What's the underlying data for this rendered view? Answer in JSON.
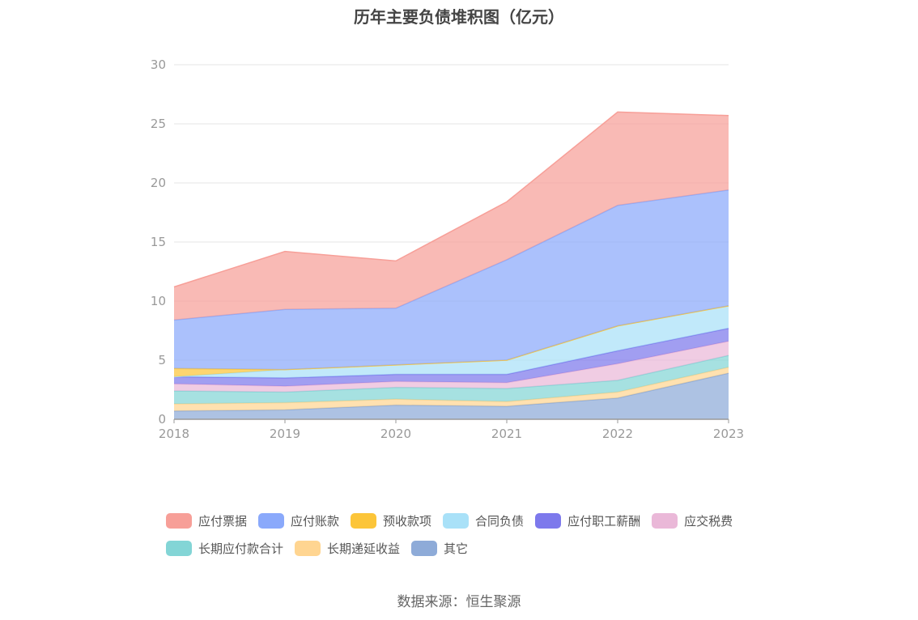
{
  "title": "历年主要负债堆积图（亿元）",
  "source": "数据来源：恒生聚源",
  "chart_data": {
    "type": "area",
    "stacked": true,
    "categories": [
      "2018",
      "2019",
      "2020",
      "2021",
      "2022",
      "2023"
    ],
    "ylim": [
      0,
      30
    ],
    "yticks": [
      0,
      5,
      10,
      15,
      20,
      25,
      30
    ],
    "grid": true,
    "legend_position": "bottom",
    "series": [
      {
        "name": "其它",
        "color": "#8eabd8",
        "values": [
          0.7,
          0.8,
          1.2,
          1.1,
          1.8,
          3.9
        ]
      },
      {
        "name": "长期递延收益",
        "color": "#ffd591",
        "values": [
          0.6,
          0.6,
          0.5,
          0.4,
          0.5,
          0.5
        ]
      },
      {
        "name": "长期应付款合计",
        "color": "#83d5d6",
        "values": [
          1.1,
          0.9,
          1.0,
          1.1,
          1.0,
          1.0
        ]
      },
      {
        "name": "应交税费",
        "color": "#eab8d8",
        "values": [
          0.6,
          0.5,
          0.5,
          0.5,
          1.4,
          1.2
        ]
      },
      {
        "name": "应付职工薪酬",
        "color": "#7d79ec",
        "values": [
          0.6,
          0.7,
          0.6,
          0.7,
          1.1,
          1.1
        ]
      },
      {
        "name": "合同负债",
        "color": "#a9e1f8",
        "values": [
          0.0,
          0.7,
          0.8,
          1.2,
          2.1,
          1.9
        ]
      },
      {
        "name": "预收款项",
        "color": "#fcc539",
        "values": [
          0.7,
          0.0,
          0.0,
          0.0,
          0.0,
          0.0
        ]
      },
      {
        "name": "应付账款",
        "color": "#8aa9fb",
        "values": [
          4.1,
          5.1,
          4.8,
          8.5,
          10.2,
          9.8
        ]
      },
      {
        "name": "应付票据",
        "color": "#f79f98",
        "values": [
          2.8,
          4.9,
          4.0,
          4.9,
          7.9,
          6.3
        ]
      }
    ]
  },
  "legend": [
    {
      "name": "应付票据",
      "color": "#f79f98"
    },
    {
      "name": "应付账款",
      "color": "#8aa9fb"
    },
    {
      "name": "预收款项",
      "color": "#fcc539"
    },
    {
      "name": "合同负债",
      "color": "#a9e1f8"
    },
    {
      "name": "应付职工薪酬",
      "color": "#7d79ec"
    },
    {
      "name": "应交税费",
      "color": "#eab8d8"
    },
    {
      "name": "长期应付款合计",
      "color": "#83d5d6"
    },
    {
      "name": "长期递延收益",
      "color": "#ffd591"
    },
    {
      "name": "其它",
      "color": "#8eabd8"
    }
  ]
}
